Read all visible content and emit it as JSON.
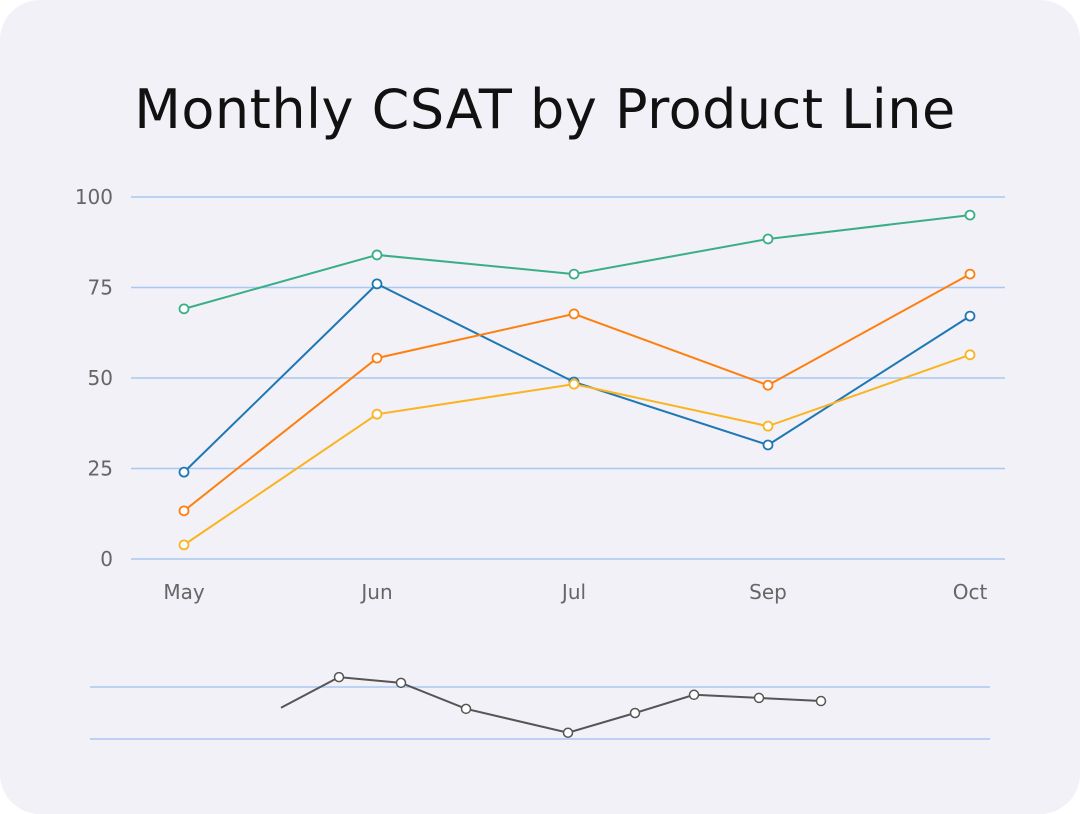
{
  "chart_data": [
    {
      "type": "line",
      "title": "Monthly CSAT by Product Line",
      "xlabel": "",
      "ylabel": "",
      "categories": [
        "May",
        "Jun",
        "Jul",
        "Sep",
        "Oct"
      ],
      "ylim": [
        0,
        100
      ],
      "yticks": [
        0,
        25,
        50,
        75,
        100
      ],
      "grid": "horizontal",
      "gridColor": "#a9c8f2",
      "series": [
        {
          "color": "#3aaf85",
          "values": [
            69.1,
            84.0,
            78.7,
            88.4,
            95.0
          ]
        },
        {
          "color": "#1f77b4",
          "values": [
            24.0,
            76.0,
            48.9,
            31.5,
            67.1
          ]
        },
        {
          "color": "#ff7f0e",
          "values": [
            13.3,
            55.5,
            67.7,
            48.0,
            78.7
          ]
        },
        {
          "color": "#fbb41f",
          "values": [
            3.9,
            40.0,
            48.3,
            36.7,
            56.4
          ]
        }
      ]
    },
    {
      "type": "line",
      "role": "overview navigator",
      "ylim": [
        0,
        100
      ],
      "color": "#555555",
      "values": [
        60,
        119,
        108,
        58,
        12,
        50,
        85,
        79,
        73
      ]
    }
  ]
}
